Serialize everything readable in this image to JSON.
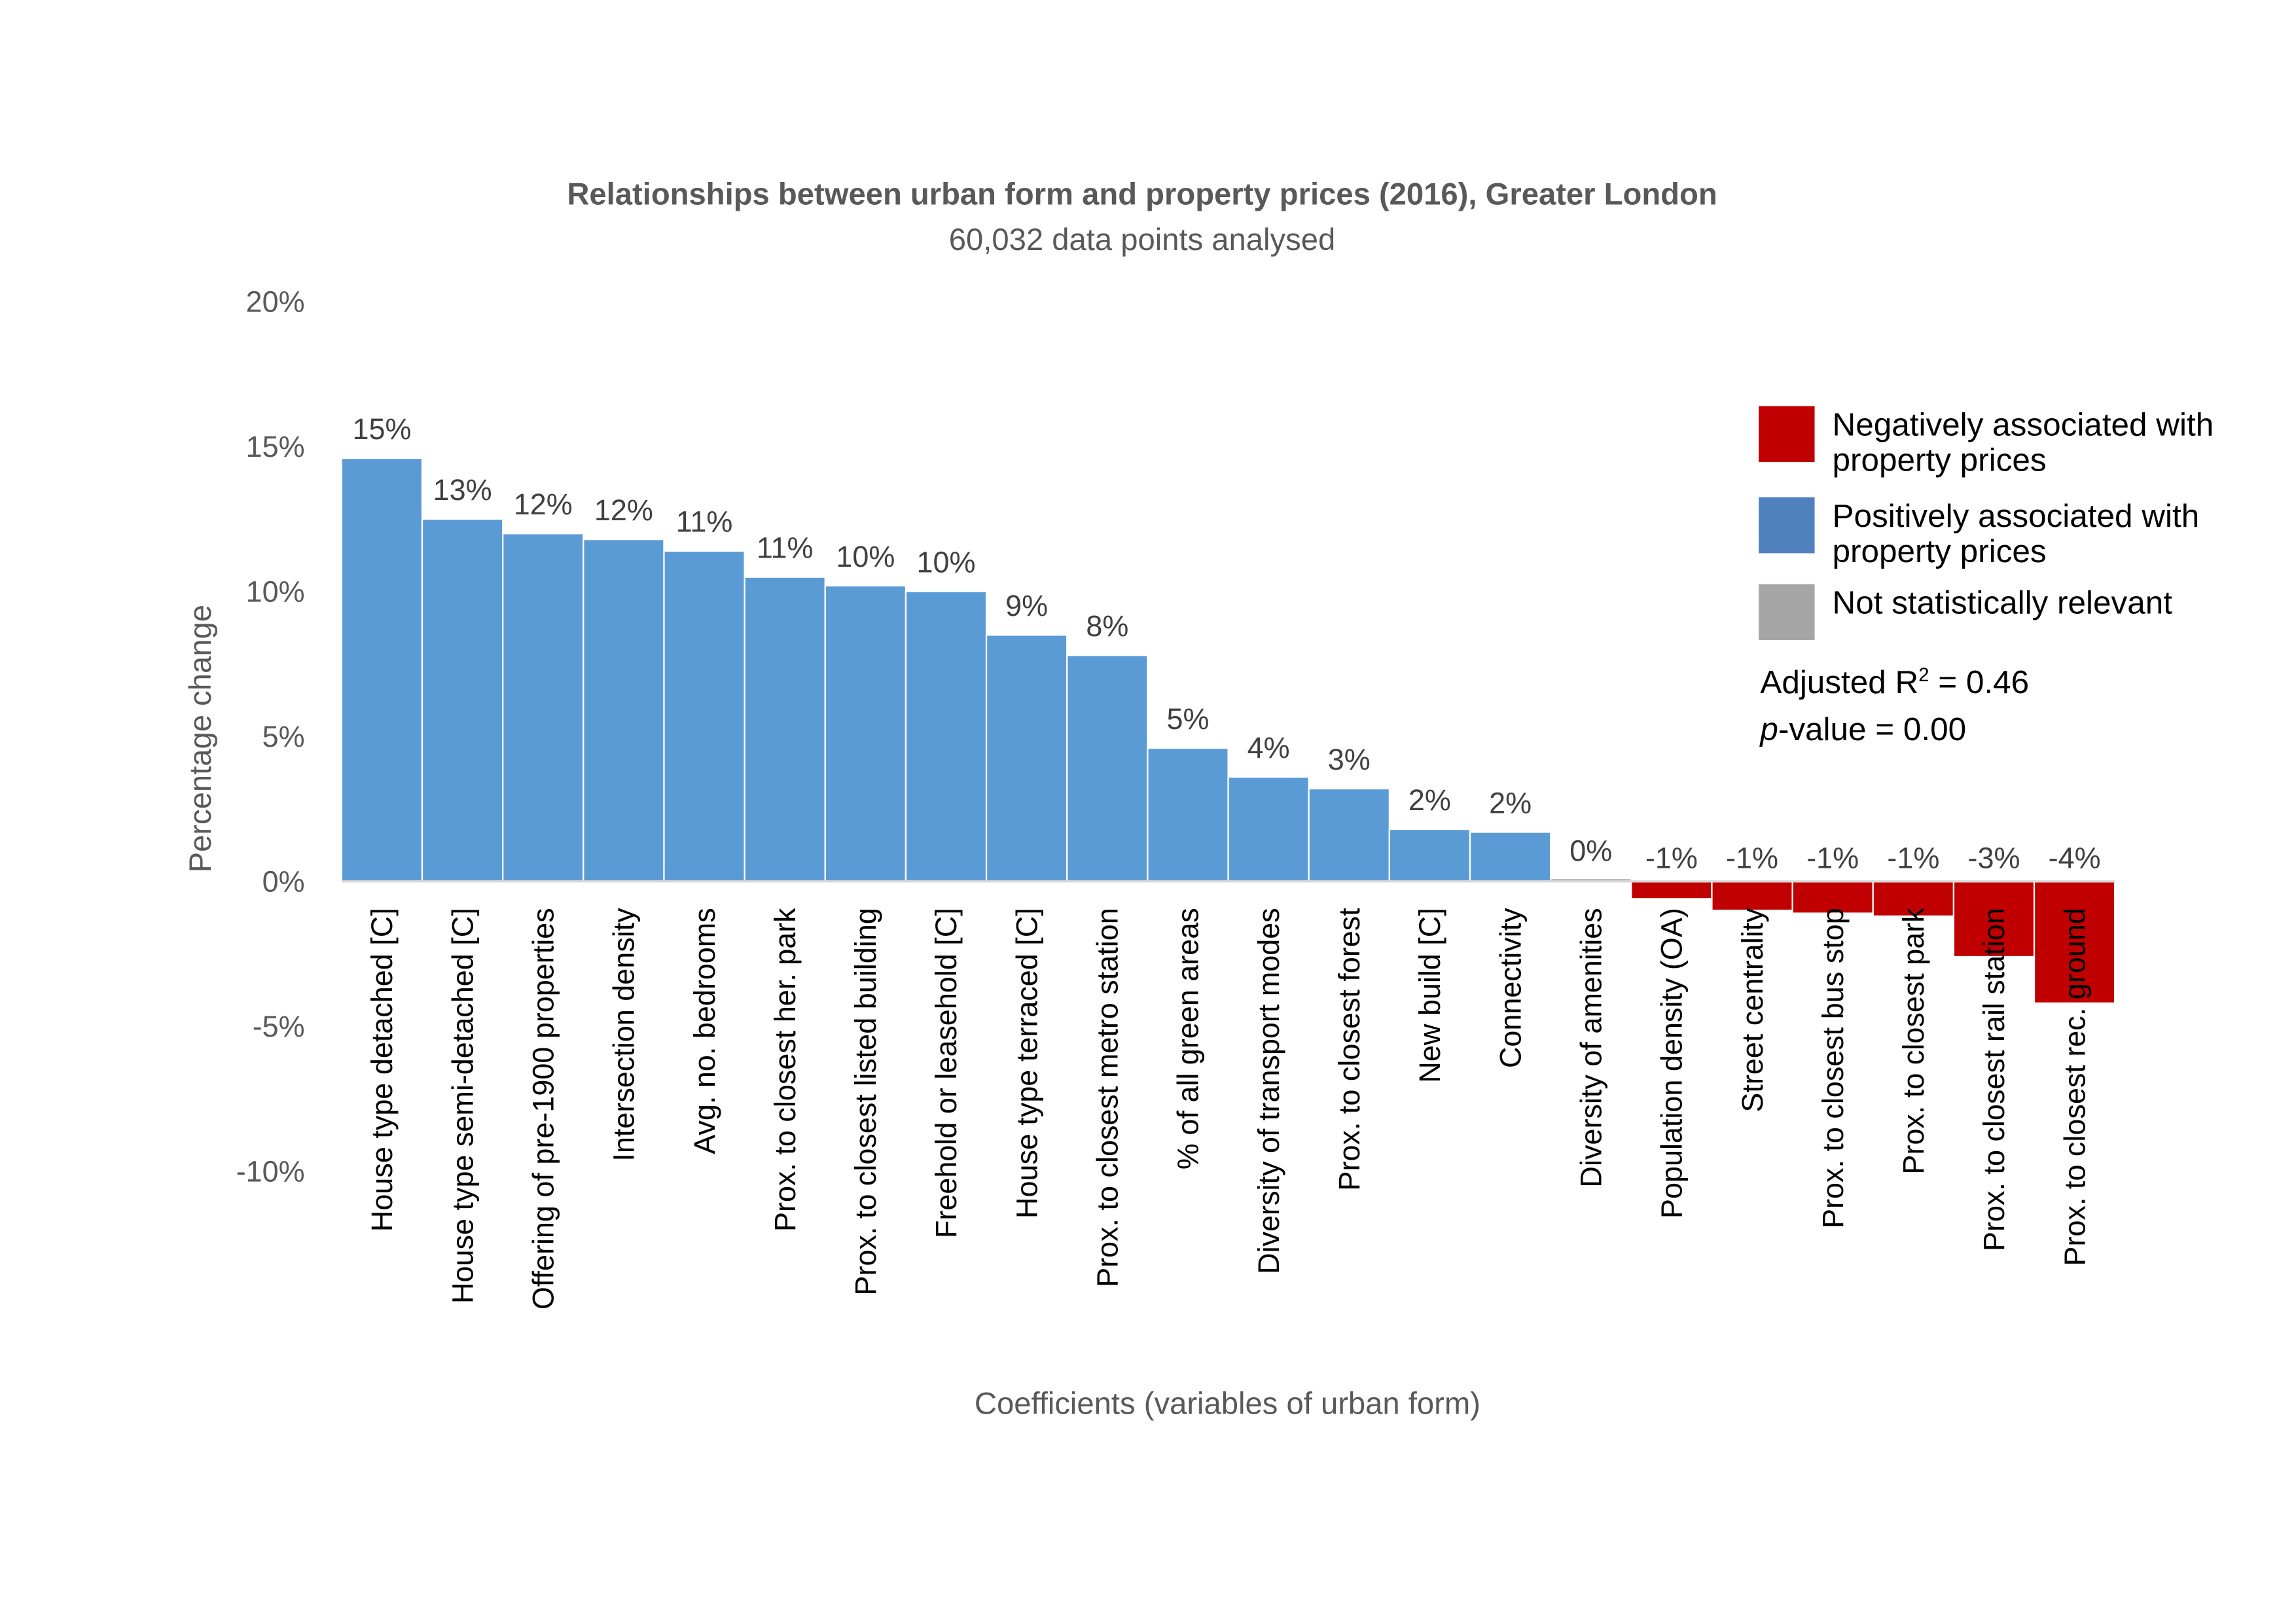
{
  "chart_data": {
    "type": "bar",
    "title": "Relationships between urban form and property prices (2016), Greater London",
    "subtitle": "60,032 data points analysed",
    "xlabel": "Coefficients (variables of urban form)",
    "ylabel": "Percentage change",
    "ylim": [
      -10,
      20
    ],
    "yticks": [
      "20%",
      "15%",
      "10%",
      "5%",
      "0%",
      "-5%",
      "-10%"
    ],
    "ytick_values": [
      20,
      15,
      10,
      5,
      0,
      -5,
      -10
    ],
    "grid": false,
    "legend_position": "top-right",
    "categories": [
      "House type detached [C]",
      "House type semi-detached [C]",
      "Offering of pre-1900 properties",
      "Intersection density",
      "Avg. no. bedrooms",
      "Prox. to closest her. park",
      "Prox. to closest listed building",
      "Freehold or leasehold [C]",
      "House type terraced [C]",
      "Prox. to closest metro station",
      "% of all green areas",
      "Diversity of transport modes",
      "Prox. to closest forest",
      "New build [C]",
      "Connectivity",
      "Diversity of amenities",
      "Population density (OA)",
      "Street centrality",
      "Prox. to closest bus stop",
      "Prox. to closest park",
      "Prox. to closest rail station",
      "Prox. to closest rec. ground"
    ],
    "values": [
      14.6,
      12.5,
      12.0,
      11.8,
      11.4,
      10.5,
      10.2,
      10.0,
      8.5,
      7.8,
      4.6,
      3.6,
      3.2,
      1.8,
      1.7,
      0.05,
      -0.6,
      -1.0,
      -1.1,
      -1.2,
      -2.6,
      -4.2
    ],
    "data_labels": [
      "15%",
      "13%",
      "12%",
      "12%",
      "11%",
      "11%",
      "10%",
      "10%",
      "9%",
      "8%",
      "5%",
      "4%",
      "3%",
      "2%",
      "2%",
      "0%",
      "-1%",
      "-1%",
      "-1%",
      "-1%",
      "-3%",
      "-4%"
    ],
    "significance": [
      "positive",
      "positive",
      "positive",
      "positive",
      "positive",
      "positive",
      "positive",
      "positive",
      "positive",
      "positive",
      "positive",
      "positive",
      "positive",
      "positive",
      "positive",
      "not-significant",
      "negative",
      "negative",
      "negative",
      "negative",
      "negative",
      "negative"
    ],
    "colors": {
      "positive": "#5B9BD5",
      "negative": "#C00000",
      "not-significant": "#A5A5A5"
    },
    "legend": [
      {
        "label_line1": "Negatively associated with",
        "label_line2": "property prices",
        "color": "#C00000"
      },
      {
        "label_line1": "Positively associated with",
        "label_line2": "property prices",
        "color": "#4F81BD"
      },
      {
        "label_line1": "Not statistically relevant",
        "label_line2": "",
        "color": "#A5A5A5"
      }
    ],
    "stats": {
      "r2_prefix": "Adjusted R",
      "r2_sup": "2",
      "r2_value": " = 0.46",
      "p_italic": "p",
      "p_rest": "-value = 0.00"
    }
  }
}
